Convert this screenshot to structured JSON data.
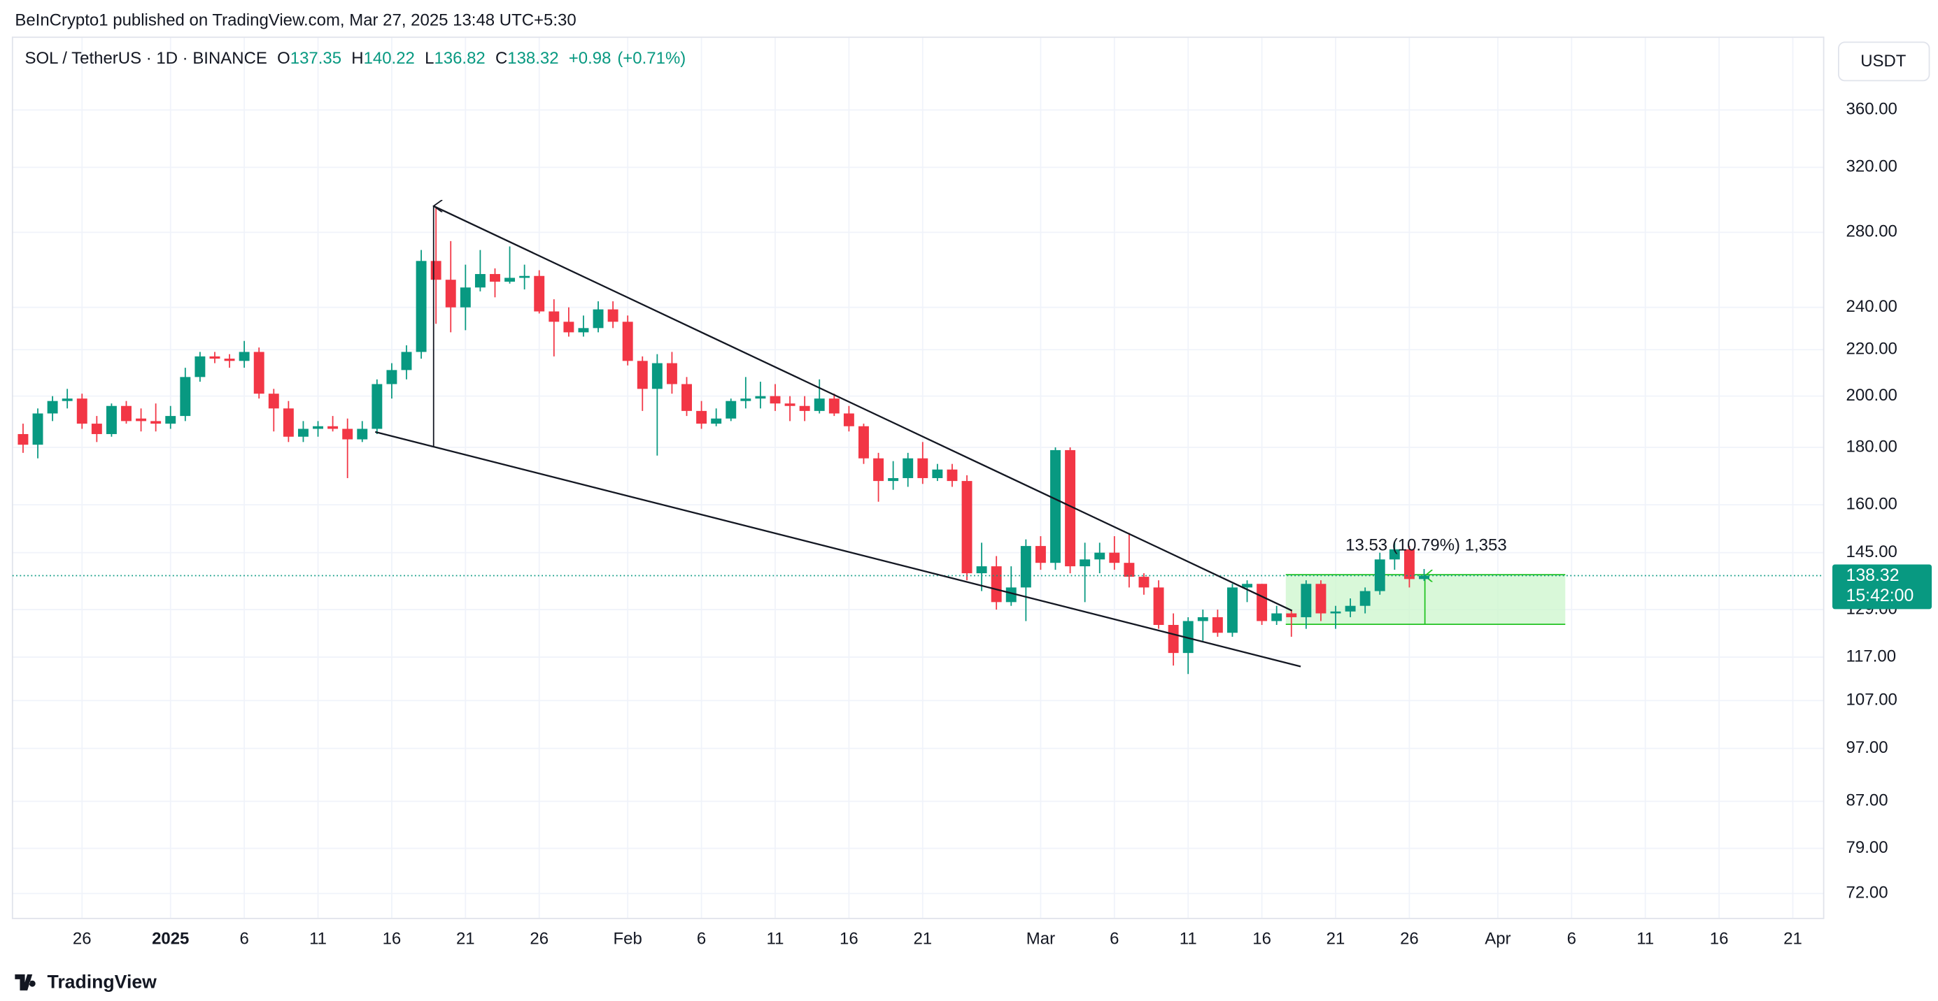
{
  "header": {
    "attribution": "BeInCrypto1 published on TradingView.com, Mar 27, 2025 13:48 UTC+5:30",
    "symbol": "SOL / TetherUS · 1D · BINANCE",
    "ohlc": [
      {
        "label": "O",
        "value": 137.35
      },
      {
        "label": "H",
        "value": 140.22
      },
      {
        "label": "L",
        "value": 136.82
      },
      {
        "label": "C",
        "value": 138.32
      }
    ],
    "change": "+0.98",
    "change_pct": "(+0.71%)"
  },
  "brand": "TradingView",
  "chart_data": {
    "type": "candlestick",
    "log_scale": true,
    "grid": true,
    "up_color": "#089981",
    "down_color": "#f23645",
    "currency": "USDT",
    "countdown": "15:42:00",
    "measure_label": "13.53 (10.79%) 1,353",
    "x": [
      "2024-12-22",
      "2024-12-23",
      "2024-12-24",
      "2024-12-25",
      "2024-12-26",
      "2024-12-27",
      "2024-12-28",
      "2024-12-29",
      "2024-12-30",
      "2024-12-31",
      "2025-01-01",
      "2025-01-02",
      "2025-01-03",
      "2025-01-04",
      "2025-01-05",
      "2025-01-06",
      "2025-01-07",
      "2025-01-08",
      "2025-01-09",
      "2025-01-10",
      "2025-01-11",
      "2025-01-12",
      "2025-01-13",
      "2025-01-14",
      "2025-01-15",
      "2025-01-16",
      "2025-01-17",
      "2025-01-18",
      "2025-01-19",
      "2025-01-20",
      "2025-01-21",
      "2025-01-22",
      "2025-01-23",
      "2025-01-24",
      "2025-01-25",
      "2025-01-26",
      "2025-01-27",
      "2025-01-28",
      "2025-01-29",
      "2025-01-30",
      "2025-01-31",
      "2025-02-01",
      "2025-02-02",
      "2025-02-03",
      "2025-02-04",
      "2025-02-05",
      "2025-02-06",
      "2025-02-07",
      "2025-02-08",
      "2025-02-09",
      "2025-02-10",
      "2025-02-11",
      "2025-02-12",
      "2025-02-13",
      "2025-02-14",
      "2025-02-15",
      "2025-02-16",
      "2025-02-17",
      "2025-02-18",
      "2025-02-19",
      "2025-02-20",
      "2025-02-21",
      "2025-02-22",
      "2025-02-23",
      "2025-02-24",
      "2025-02-25",
      "2025-02-26",
      "2025-02-27",
      "2025-02-28",
      "2025-03-01",
      "2025-03-02",
      "2025-03-03",
      "2025-03-04",
      "2025-03-05",
      "2025-03-06",
      "2025-03-07",
      "2025-03-08",
      "2025-03-09",
      "2025-03-10",
      "2025-03-11",
      "2025-03-12",
      "2025-03-13",
      "2025-03-14",
      "2025-03-15",
      "2025-03-16",
      "2025-03-17",
      "2025-03-18",
      "2025-03-19",
      "2025-03-20",
      "2025-03-21",
      "2025-03-22",
      "2025-03-23",
      "2025-03-24",
      "2025-03-25",
      "2025-03-26",
      "2025-03-27"
    ],
    "open": [
      185,
      181,
      193,
      198,
      199,
      189,
      185,
      196,
      191,
      190,
      189,
      192,
      208,
      217,
      216,
      215,
      219,
      201,
      195,
      184,
      187,
      188,
      187,
      183,
      187,
      205,
      211,
      219,
      264,
      254,
      240,
      250,
      257,
      253,
      255,
      256,
      238,
      233,
      228,
      230,
      239,
      233,
      215,
      203,
      214,
      205,
      194,
      189,
      191,
      198,
      199,
      200,
      197,
      196,
      194,
      199,
      193,
      188,
      176,
      168,
      169,
      176,
      169,
      172,
      168,
      139,
      141,
      131,
      135,
      147,
      142,
      179,
      141,
      143,
      145,
      142,
      138,
      135,
      125,
      118,
      126,
      127,
      123,
      135,
      136,
      126,
      128,
      127,
      136,
      128,
      128.5,
      130,
      134,
      143,
      146,
      137.35
    ],
    "high": [
      189,
      195,
      200,
      203,
      201,
      192,
      197,
      198,
      195,
      197,
      196,
      212,
      219,
      219,
      218,
      224,
      221,
      203,
      198,
      190,
      190,
      192,
      191,
      190,
      207,
      214,
      222,
      270,
      295,
      275,
      262,
      270,
      260,
      272,
      262,
      259,
      244,
      240,
      236,
      243,
      243,
      236,
      217,
      218,
      219,
      208,
      198,
      195,
      199,
      208,
      206,
      205,
      200,
      200,
      207,
      201,
      196,
      189,
      178,
      175,
      178,
      182,
      174,
      174,
      170,
      148,
      144,
      141,
      149,
      150,
      180,
      180,
      148,
      148,
      150,
      151,
      139,
      137,
      128,
      127,
      129,
      129,
      136,
      137,
      136,
      130,
      129,
      137,
      137,
      130,
      132,
      135,
      145,
      148,
      147,
      140.22
    ],
    "low": [
      178,
      176,
      190,
      195,
      187,
      182,
      184,
      189,
      186,
      186,
      187,
      190,
      206,
      214,
      212,
      212,
      199,
      186,
      182,
      182,
      184,
      186,
      169,
      182,
      185,
      199,
      207,
      216,
      232,
      228,
      229,
      248,
      245,
      252,
      249,
      237,
      217,
      226,
      226,
      228,
      230,
      213,
      194,
      177,
      201,
      192,
      187,
      188,
      190,
      195,
      195,
      194,
      190,
      190,
      193,
      192,
      186,
      174,
      161,
      165,
      166,
      167,
      168,
      166,
      137,
      134,
      129,
      130,
      126,
      140,
      140,
      139,
      131,
      139,
      140,
      135,
      133,
      124,
      115,
      113,
      121,
      122,
      122,
      131,
      125,
      125,
      122,
      124,
      126,
      124,
      127,
      128,
      133,
      140,
      135,
      136.82
    ],
    "close": [
      181,
      193,
      198,
      199,
      189,
      185,
      196,
      190,
      190,
      189,
      192,
      208,
      217,
      216,
      215,
      219,
      201,
      195,
      184,
      187,
      188,
      187,
      183,
      187,
      205,
      211,
      219,
      264,
      254,
      240,
      250,
      257,
      253,
      255,
      256,
      238,
      233,
      228,
      230,
      239,
      233,
      215,
      203,
      214,
      205,
      194,
      189,
      191,
      198,
      199,
      200,
      197,
      196,
      194,
      199,
      193,
      188,
      176,
      168,
      169,
      176,
      169,
      172,
      168,
      139,
      141,
      131,
      135,
      147,
      142,
      179,
      141,
      143,
      145,
      142,
      138,
      135,
      125,
      118,
      126,
      127,
      123,
      135,
      136,
      126,
      128,
      127,
      136,
      128,
      128.5,
      130,
      134,
      143,
      146,
      137.35,
      138.32
    ],
    "ylim": [
      68.4,
      418
    ],
    "yticks": [
      {
        "value": 72,
        "label": "72.00"
      },
      {
        "value": 79,
        "label": "79.00"
      },
      {
        "value": 87,
        "label": "87.00"
      },
      {
        "value": 97,
        "label": "97.00"
      },
      {
        "value": 107,
        "label": "107.00"
      },
      {
        "value": 117,
        "label": "117.00"
      },
      {
        "value": 129,
        "label": "129.00"
      },
      {
        "value": 145,
        "label": "145.00"
      },
      {
        "value": 160,
        "label": "160.00"
      },
      {
        "value": 180,
        "label": "180.00"
      },
      {
        "value": 200,
        "label": "200.00"
      },
      {
        "value": 220,
        "label": "220.00"
      },
      {
        "value": 240,
        "label": "240.00"
      },
      {
        "value": 280,
        "label": "280.00"
      },
      {
        "value": 320,
        "label": "320.00"
      },
      {
        "value": 360,
        "label": "360.00"
      }
    ],
    "xlim": [
      "2024-12-21",
      "2025-04-23"
    ],
    "xticks": [
      {
        "value": "2024-12-26",
        "label": "26"
      },
      {
        "value": "2025-01-01",
        "label": "2025"
      },
      {
        "value": "2025-01-06",
        "label": "6"
      },
      {
        "value": "2025-01-11",
        "label": "11"
      },
      {
        "value": "2025-01-16",
        "label": "16"
      },
      {
        "value": "2025-01-21",
        "label": "21"
      },
      {
        "value": "2025-01-26",
        "label": "26"
      },
      {
        "value": "2025-02-01",
        "label": "Feb"
      },
      {
        "value": "2025-02-06",
        "label": "6"
      },
      {
        "value": "2025-02-11",
        "label": "11"
      },
      {
        "value": "2025-02-16",
        "label": "16"
      },
      {
        "value": "2025-02-21",
        "label": "21"
      },
      {
        "value": "2025-03-01",
        "label": "Mar"
      },
      {
        "value": "2025-03-06",
        "label": "6"
      },
      {
        "value": "2025-03-11",
        "label": "11"
      },
      {
        "value": "2025-03-16",
        "label": "16"
      },
      {
        "value": "2025-03-21",
        "label": "21"
      },
      {
        "value": "2025-03-26",
        "label": "26"
      },
      {
        "value": "2025-04-01",
        "label": "Apr"
      },
      {
        "value": "2025-04-06",
        "label": "6"
      },
      {
        "value": "2025-04-11",
        "label": "11"
      },
      {
        "value": "2025-04-16",
        "label": "16"
      },
      {
        "value": "2025-04-21",
        "label": "21"
      }
    ]
  }
}
